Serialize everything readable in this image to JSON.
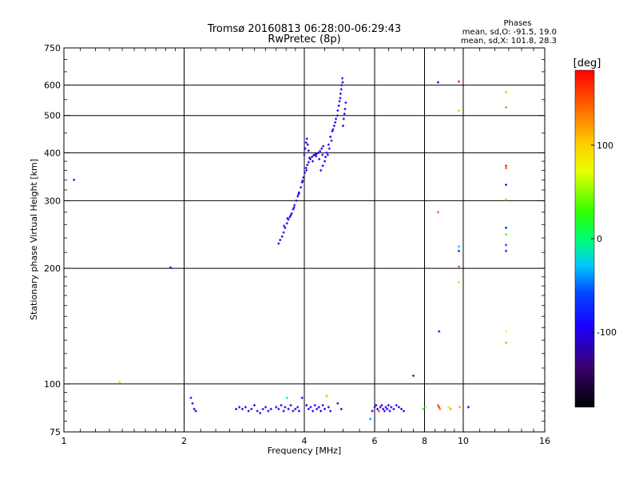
{
  "chart_data": {
    "type": "scatter",
    "title": "Tromsø 20160813 06:28:00-06:29:43",
    "subtitle": "RwPretec (8p)",
    "xlabel": "Frequency [MHz]",
    "ylabel": "Stationary phase Virtual Height [km]",
    "x_scale": "log",
    "y_scale": "log",
    "xlim": [
      1,
      16
    ],
    "ylim": [
      75,
      750
    ],
    "x_ticks": [
      1,
      2,
      4,
      6,
      8,
      10,
      16
    ],
    "x_tick_labels": [
      "1",
      "2",
      "4",
      "6",
      "8",
      "10",
      "16"
    ],
    "y_ticks": [
      75,
      100,
      200,
      300,
      400,
      500,
      600,
      750
    ],
    "y_tick_labels": [
      "75",
      "100",
      "200",
      "300",
      "400",
      "500",
      "600",
      "750"
    ],
    "grid": true,
    "stats": {
      "title": "Phases",
      "line_o": "mean, sd,O: -91.5, 19.0",
      "line_x": "mean, sd,X: 101.8, 28.3"
    },
    "colorbar": {
      "label": "[deg]",
      "range": [
        -180,
        180
      ],
      "ticks": [
        100,
        0,
        -100
      ],
      "tick_labels": [
        "100",
        "0",
        "-100"
      ]
    },
    "series": [
      {
        "values": [
          [
            1.06,
            340,
            -90
          ],
          [
            1.38,
            101,
            110
          ],
          [
            1.85,
            201,
            -100
          ],
          [
            3.45,
            232,
            -105
          ],
          [
            3.48,
            237,
            -100
          ],
          [
            3.52,
            242,
            -110
          ],
          [
            3.55,
            248,
            -95
          ],
          [
            3.58,
            255,
            -105
          ],
          [
            3.62,
            262,
            -100
          ],
          [
            3.65,
            268,
            -90
          ],
          [
            3.68,
            272,
            -105
          ],
          [
            3.72,
            278,
            -95
          ],
          [
            3.75,
            285,
            -100
          ],
          [
            3.78,
            292,
            -110
          ],
          [
            3.82,
            300,
            -95
          ],
          [
            3.85,
            308,
            -100
          ],
          [
            3.88,
            315,
            -105
          ],
          [
            3.92,
            325,
            -90
          ],
          [
            3.95,
            335,
            -100
          ],
          [
            3.98,
            345,
            -105
          ],
          [
            4.01,
            355,
            -95
          ],
          [
            4.04,
            365,
            -100
          ],
          [
            4.07,
            372,
            -110
          ],
          [
            4.1,
            378,
            -95
          ],
          [
            4.14,
            385,
            -100
          ],
          [
            4.18,
            390,
            -105
          ],
          [
            4.22,
            394,
            -100
          ],
          [
            4.26,
            396,
            -95
          ],
          [
            4.3,
            398,
            -110
          ],
          [
            4.34,
            400,
            -100
          ],
          [
            4.38,
            404,
            -105
          ],
          [
            4.42,
            410,
            -95
          ],
          [
            4.46,
            416,
            -100
          ],
          [
            3.56,
            258,
            -95
          ],
          [
            3.63,
            270,
            -110
          ],
          [
            3.7,
            275,
            -100
          ],
          [
            3.77,
            288,
            -95
          ],
          [
            3.87,
            312,
            -105
          ],
          [
            3.96,
            338,
            -100
          ],
          [
            4.05,
            360,
            -95
          ],
          [
            4.12,
            388,
            -110
          ],
          [
            4.2,
            380,
            -100
          ],
          [
            4.28,
            392,
            -95
          ],
          [
            4.36,
            385,
            -105
          ],
          [
            4.44,
            395,
            -100
          ],
          [
            4.0,
            395,
            -100
          ],
          [
            4.02,
            410,
            -95
          ],
          [
            4.04,
            425,
            -105
          ],
          [
            4.06,
            435,
            -100
          ],
          [
            4.08,
            420,
            -90
          ],
          [
            4.1,
            405,
            -110
          ],
          [
            4.4,
            360,
            -100
          ],
          [
            4.45,
            370,
            -95
          ],
          [
            4.5,
            380,
            -105
          ],
          [
            4.55,
            400,
            -100
          ],
          [
            4.6,
            420,
            -90
          ],
          [
            4.65,
            440,
            -100
          ],
          [
            4.7,
            455,
            -95
          ],
          [
            4.75,
            470,
            -105
          ],
          [
            4.8,
            490,
            -100
          ],
          [
            4.85,
            515,
            -95
          ],
          [
            4.9,
            545,
            -100
          ],
          [
            4.93,
            570,
            -105
          ],
          [
            4.96,
            600,
            -95
          ],
          [
            4.98,
            625,
            -100
          ],
          [
            4.52,
            390,
            -110
          ],
          [
            4.58,
            395,
            -100
          ],
          [
            4.62,
            410,
            -95
          ],
          [
            4.68,
            430,
            -105
          ],
          [
            4.72,
            460,
            -100
          ],
          [
            4.78,
            480,
            -95
          ],
          [
            4.84,
            500,
            -105
          ],
          [
            4.88,
            530,
            -100
          ],
          [
            4.92,
            555,
            -95
          ],
          [
            4.95,
            585,
            -100
          ],
          [
            4.99,
            610,
            -110
          ],
          [
            5.0,
            470,
            -100
          ],
          [
            5.02,
            490,
            -95
          ],
          [
            5.04,
            505,
            -105
          ],
          [
            5.06,
            520,
            -100
          ],
          [
            5.08,
            540,
            -90
          ],
          [
            2.08,
            92,
            -110
          ],
          [
            2.1,
            89,
            -100
          ],
          [
            2.12,
            86,
            -95
          ],
          [
            2.14,
            85,
            -105
          ],
          [
            2.7,
            86,
            -100
          ],
          [
            2.75,
            87,
            -90
          ],
          [
            2.8,
            86,
            -105
          ],
          [
            2.85,
            87,
            -95
          ],
          [
            2.9,
            85,
            -100
          ],
          [
            2.95,
            86,
            -110
          ],
          [
            3.0,
            88,
            -100
          ],
          [
            3.05,
            85,
            -95
          ],
          [
            3.1,
            84,
            -105
          ],
          [
            3.15,
            86,
            -100
          ],
          [
            3.2,
            87,
            -90
          ],
          [
            3.25,
            85,
            -100
          ],
          [
            3.3,
            86,
            -105
          ],
          [
            3.4,
            87,
            -100
          ],
          [
            3.45,
            86,
            -95
          ],
          [
            3.5,
            88,
            -105
          ],
          [
            3.55,
            85,
            -100
          ],
          [
            3.58,
            87,
            -110
          ],
          [
            3.62,
            92,
            -10
          ],
          [
            3.65,
            86,
            -100
          ],
          [
            3.7,
            88,
            -95
          ],
          [
            3.75,
            85,
            -105
          ],
          [
            3.8,
            86,
            -100
          ],
          [
            3.85,
            87,
            -90
          ],
          [
            3.88,
            85,
            -100
          ],
          [
            3.95,
            92,
            -100
          ],
          [
            4.05,
            88,
            -100
          ],
          [
            4.1,
            86,
            -95
          ],
          [
            4.15,
            87,
            -105
          ],
          [
            4.2,
            85,
            -100
          ],
          [
            4.25,
            88,
            -95
          ],
          [
            4.3,
            86,
            -110
          ],
          [
            4.35,
            87,
            -100
          ],
          [
            4.4,
            85,
            -105
          ],
          [
            4.45,
            88,
            -95
          ],
          [
            4.5,
            86,
            -100
          ],
          [
            4.55,
            93,
            120
          ],
          [
            4.6,
            87,
            -100
          ],
          [
            4.65,
            85,
            -95
          ],
          [
            4.85,
            89,
            -100
          ],
          [
            4.95,
            86,
            -105
          ],
          [
            5.85,
            81,
            -40
          ],
          [
            5.92,
            85,
            -100
          ],
          [
            6.0,
            87,
            -95
          ],
          [
            6.05,
            88,
            -105
          ],
          [
            6.1,
            86,
            -100
          ],
          [
            6.15,
            85,
            160
          ],
          [
            6.2,
            87,
            -100
          ],
          [
            6.25,
            88,
            -95
          ],
          [
            6.3,
            86,
            -105
          ],
          [
            6.35,
            85,
            -100
          ],
          [
            6.4,
            87,
            -90
          ],
          [
            6.45,
            86,
            -100
          ],
          [
            6.5,
            88,
            -95
          ],
          [
            6.55,
            85,
            -105
          ],
          [
            6.6,
            87,
            -100
          ],
          [
            6.7,
            86,
            -95
          ],
          [
            6.8,
            88,
            -100
          ],
          [
            6.9,
            87,
            -105
          ],
          [
            7.0,
            86,
            -100
          ],
          [
            7.1,
            85,
            -95
          ],
          [
            7.5,
            105,
            -100
          ],
          [
            7.95,
            86,
            20
          ],
          [
            8.05,
            87,
            60
          ],
          [
            8.65,
            610,
            -100
          ],
          [
            8.65,
            280,
            150
          ],
          [
            8.7,
            137,
            -110
          ],
          [
            8.65,
            88,
            140
          ],
          [
            8.7,
            87,
            160
          ],
          [
            8.75,
            86,
            130
          ],
          [
            9.2,
            87,
            60
          ],
          [
            9.3,
            86,
            120
          ],
          [
            9.75,
            613,
            170
          ],
          [
            9.75,
            515,
            110
          ],
          [
            9.75,
            228,
            -30
          ],
          [
            9.75,
            222,
            -100
          ],
          [
            9.75,
            202,
            150
          ],
          [
            9.75,
            184,
            105
          ],
          [
            9.8,
            87,
            120
          ],
          [
            10.3,
            87,
            -105
          ],
          [
            12.8,
            575,
            110
          ],
          [
            12.8,
            525,
            130
          ],
          [
            12.8,
            370,
            170
          ],
          [
            12.8,
            365,
            150
          ],
          [
            12.8,
            330,
            -100
          ],
          [
            12.8,
            302,
            110
          ],
          [
            12.8,
            255,
            -100
          ],
          [
            12.8,
            245,
            20
          ],
          [
            12.8,
            230,
            -70
          ],
          [
            12.8,
            222,
            -100
          ],
          [
            12.8,
            137,
            70
          ],
          [
            12.8,
            128,
            120
          ]
        ]
      }
    ]
  }
}
